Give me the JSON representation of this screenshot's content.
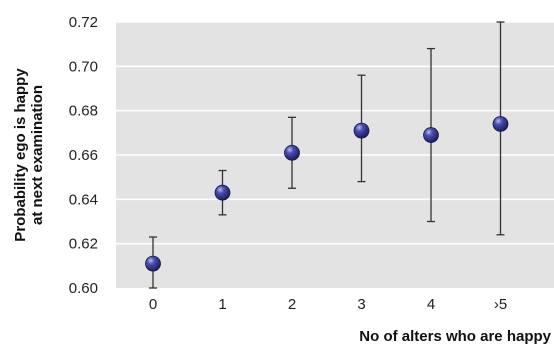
{
  "chart_data": {
    "type": "scatter",
    "xlabel": "No of alters who are happy",
    "ylabel_lines": [
      "Probability ego is happy",
      "at next examination"
    ],
    "categories": [
      "0",
      "1",
      "2",
      "3",
      "4",
      "›5"
    ],
    "ylim": [
      0.6,
      0.72
    ],
    "y_ticks": [
      "0.60",
      "0.62",
      "0.64",
      "0.66",
      "0.68",
      "0.70",
      "0.72"
    ],
    "grid": true,
    "colors": {
      "plot_bg": "#e3e3e3",
      "grid": "#ffffff",
      "marker": "#3b3f97",
      "error_bar": "#333333"
    },
    "series": [
      {
        "values": [
          0.611,
          0.643,
          0.661,
          0.671,
          0.669,
          0.674
        ],
        "lower": [
          0.6,
          0.633,
          0.645,
          0.648,
          0.63,
          0.624
        ],
        "upper": [
          0.623,
          0.653,
          0.677,
          0.696,
          0.708,
          0.72
        ]
      }
    ]
  }
}
